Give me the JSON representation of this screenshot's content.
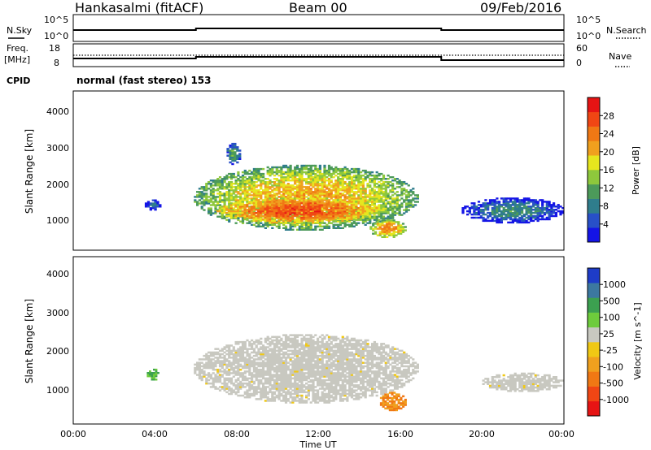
{
  "header": {
    "station": "Hankasalmi (fitACF)",
    "beam": "Beam 00",
    "date": "09/Feb/2016"
  },
  "noise_panel": {
    "left_label": "N.Sky",
    "right_label": "N.Search",
    "left_ticks": [
      "10^5",
      "10^0"
    ],
    "right_ticks": [
      "10^5",
      "10^0"
    ]
  },
  "freq_panel": {
    "left_label_1": "Freq.",
    "left_label_2": "[MHz]",
    "right_label": "Nave",
    "left_ticks": [
      "18",
      "8"
    ],
    "right_ticks": [
      "60",
      "0"
    ]
  },
  "cpid": {
    "label": "CPID",
    "value": "normal (fast stereo) 153"
  },
  "chart_data": [
    {
      "type": "heatmap",
      "panel": "power",
      "ylabel": "Slant Range [km]",
      "ylim": [
        180,
        4500
      ],
      "yticks": [
        "1000",
        "2000",
        "3000",
        "4000"
      ],
      "xlim": [
        "00:00",
        "24:00"
      ],
      "colorbar": {
        "label": "Power [dB]",
        "ticks": [
          "4",
          "8",
          "12",
          "16",
          "20",
          "24",
          "28"
        ],
        "colors": [
          "#1414e6",
          "#2850c8",
          "#2f7d8c",
          "#4c9a5a",
          "#8ec83c",
          "#e6e61e",
          "#f0a01e",
          "#f07814",
          "#f04614",
          "#e61414"
        ]
      },
      "echo_regions": [
        {
          "t0": 5.9,
          "t1": 16.9,
          "r0": 700,
          "r1": 2500,
          "value_db": 20
        },
        {
          "t0": 7.0,
          "t1": 15.0,
          "r0": 900,
          "r1": 1600,
          "value_db": 26
        },
        {
          "t0": 7.5,
          "t1": 8.2,
          "r0": 2500,
          "r1": 3100,
          "value_db": 12
        },
        {
          "t0": 14.5,
          "t1": 16.3,
          "r0": 500,
          "r1": 1000,
          "value_db": 22
        },
        {
          "t0": 3.5,
          "t1": 4.3,
          "r0": 1250,
          "r1": 1550,
          "value_db": 8
        },
        {
          "t0": 19.0,
          "t1": 24.0,
          "r0": 900,
          "r1": 1600,
          "value_db": 10
        }
      ]
    },
    {
      "type": "heatmap",
      "panel": "velocity",
      "ylabel": "Slant Range [km]",
      "xlabel": "Time UT",
      "ylim": [
        180,
        4500
      ],
      "yticks": [
        "1000",
        "2000",
        "3000",
        "4000"
      ],
      "xticks": [
        "00:00",
        "04:00",
        "08:00",
        "12:00",
        "16:00",
        "20:00",
        "00:00"
      ],
      "colorbar": {
        "label": "Velocity [m s^-1]",
        "ticks": [
          "1000",
          "500",
          "100",
          "25",
          "-25",
          "-100",
          "-500",
          "-1000"
        ],
        "colors": [
          "#1e3cc8",
          "#3c78a0",
          "#3ca050",
          "#6ecc3c",
          "#c8c8c0",
          "#f0c814",
          "#f0a01e",
          "#f07814",
          "#f04614",
          "#e61414"
        ]
      },
      "echo_regions": [
        {
          "t0": 5.9,
          "t1": 16.9,
          "r0": 700,
          "r1": 2500,
          "value_ms": 0
        },
        {
          "t0": 15.0,
          "t1": 16.3,
          "r0": 500,
          "r1": 1000,
          "value_ms": -150
        },
        {
          "t0": 3.6,
          "t1": 4.2,
          "r0": 1300,
          "r1": 1600,
          "value_ms": 100
        },
        {
          "t0": 20.0,
          "t1": 24.0,
          "r0": 1000,
          "r1": 1500,
          "value_ms": 0
        }
      ]
    }
  ]
}
